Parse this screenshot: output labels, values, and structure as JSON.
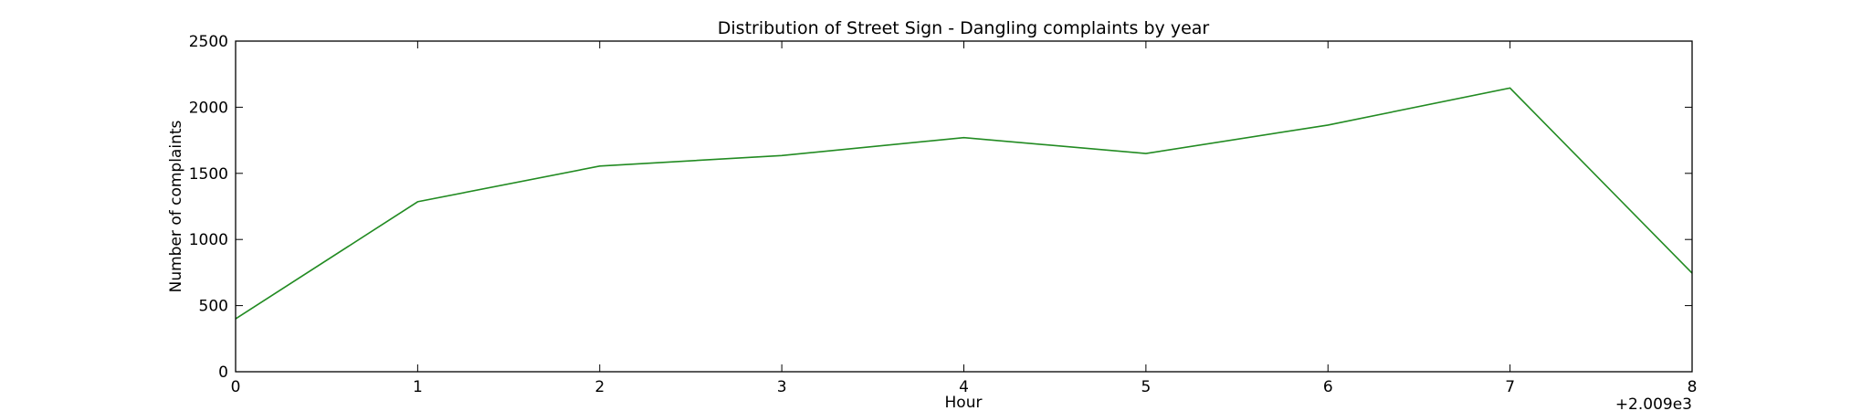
{
  "chart_data": {
    "type": "line",
    "title": "Distribution of  Street Sign - Dangling complaints by year",
    "xlabel": "Hour",
    "ylabel": "Number of complaints",
    "x_offset_label": "+2.009e3",
    "xlim": [
      0,
      8
    ],
    "ylim": [
      0,
      2500
    ],
    "x_ticks": [
      0,
      1,
      2,
      3,
      4,
      5,
      6,
      7,
      8
    ],
    "y_ticks": [
      0,
      500,
      1000,
      1500,
      2000,
      2500
    ],
    "grid": false,
    "series": [
      {
        "color": "#228B22",
        "x": [
          0,
          1,
          2,
          3,
          4,
          5,
          6,
          7,
          8
        ],
        "y": [
          400,
          1285,
          1555,
          1635,
          1770,
          1650,
          1865,
          2145,
          745
        ]
      }
    ]
  }
}
